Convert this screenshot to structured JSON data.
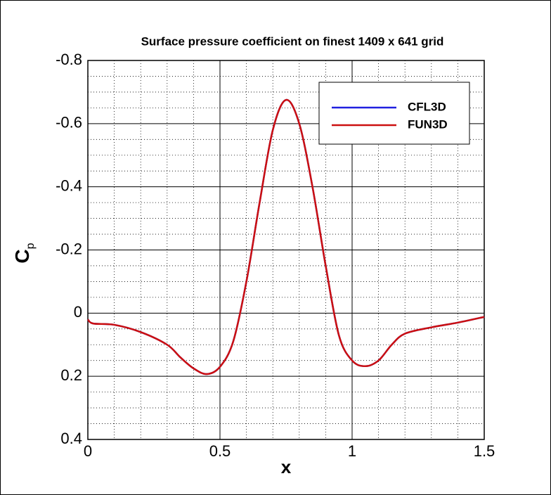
{
  "chart_data": {
    "type": "line",
    "title": "Surface pressure coefficient on finest 1409 x 641 grid",
    "xlabel": "x",
    "ylabel": "C",
    "ylabel_subscript": "p",
    "x": [
      0,
      0.02,
      0.1,
      0.2,
      0.3,
      0.35,
      0.4,
      0.45,
      0.5,
      0.55,
      0.6,
      0.65,
      0.7,
      0.75,
      0.8,
      0.85,
      0.9,
      0.95,
      1.0,
      1.05,
      1.1,
      1.15,
      1.2,
      1.3,
      1.4,
      1.5
    ],
    "series": [
      {
        "name": "CFL3D",
        "color": "#2020e0",
        "values": [
          0.02,
          0.033,
          0.037,
          0.06,
          0.1,
          0.14,
          0.175,
          0.193,
          0.17,
          0.09,
          -0.1,
          -0.35,
          -0.58,
          -0.675,
          -0.6,
          -0.4,
          -0.15,
          0.07,
          0.15,
          0.168,
          0.15,
          0.1,
          0.065,
          0.045,
          0.03,
          0.012
        ]
      },
      {
        "name": "FUN3D",
        "color": "#cc1010",
        "values": [
          0.02,
          0.033,
          0.037,
          0.06,
          0.1,
          0.14,
          0.175,
          0.193,
          0.17,
          0.09,
          -0.1,
          -0.35,
          -0.58,
          -0.675,
          -0.6,
          -0.4,
          -0.15,
          0.07,
          0.15,
          0.168,
          0.15,
          0.1,
          0.065,
          0.045,
          0.03,
          0.012
        ]
      }
    ],
    "xlim": [
      0,
      1.5
    ],
    "ylim": [
      -0.8,
      0.4
    ],
    "y_inverted": true,
    "xticks": [
      0,
      0.5,
      1,
      1.5
    ],
    "yticks": [
      -0.8,
      -0.6,
      -0.4,
      -0.2,
      0,
      0.2,
      0.4
    ],
    "xminor": [
      0.1,
      0.2,
      0.3,
      0.4,
      0.6,
      0.7,
      0.8,
      0.9,
      1.1,
      1.2,
      1.3,
      1.4
    ],
    "yminor": [
      -0.75,
      -0.7,
      -0.65,
      -0.55,
      -0.5,
      -0.45,
      -0.35,
      -0.3,
      -0.25,
      -0.15,
      -0.1,
      -0.05,
      0.05,
      0.1,
      0.15,
      0.25,
      0.3,
      0.35
    ],
    "grid": true,
    "legend": "upper right"
  }
}
